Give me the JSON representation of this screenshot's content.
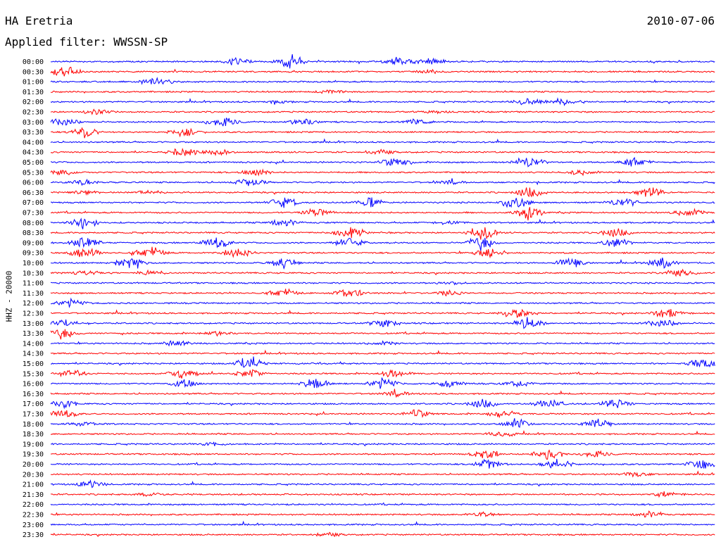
{
  "header": {
    "station": "HA Eretria",
    "date": "2010-07-06",
    "filter": "Applied filter: WWSSN-SP"
  },
  "chart_data": {
    "type": "line",
    "title": "HA Eretria",
    "subtitle": "Applied filter: WWSSN-SP",
    "date": "2010-07-06",
    "ylabel": "HHZ - 20000",
    "colors": {
      "even_hour": "#0000ff",
      "half_hour": "#ff0000"
    },
    "rows": [
      {
        "label": "00:00",
        "activity": [
          [
            0.28,
            0.5
          ],
          [
            0.36,
            0.9
          ],
          [
            0.52,
            0.5
          ],
          [
            0.57,
            0.45
          ]
        ]
      },
      {
        "label": "00:30",
        "activity": [
          [
            0.02,
            0.7
          ],
          [
            0.57,
            0.2
          ]
        ]
      },
      {
        "label": "01:00",
        "activity": [
          [
            0.16,
            0.6
          ]
        ]
      },
      {
        "label": "01:30",
        "activity": [
          [
            0.42,
            0.2
          ]
        ]
      },
      {
        "label": "02:00",
        "activity": [
          [
            0.34,
            0.15
          ],
          [
            0.72,
            0.4
          ],
          [
            0.77,
            0.4
          ]
        ]
      },
      {
        "label": "02:30",
        "activity": [
          [
            0.07,
            0.3
          ],
          [
            0.58,
            0.15
          ]
        ]
      },
      {
        "label": "03:00",
        "activity": [
          [
            0.02,
            0.5
          ],
          [
            0.26,
            0.6
          ],
          [
            0.38,
            0.5
          ],
          [
            0.55,
            0.35
          ]
        ]
      },
      {
        "label": "03:30",
        "activity": [
          [
            0.05,
            0.6
          ],
          [
            0.2,
            0.5
          ]
        ]
      },
      {
        "label": "04:00",
        "activity": []
      },
      {
        "label": "04:30",
        "activity": [
          [
            0.2,
            0.5
          ],
          [
            0.25,
            0.4
          ],
          [
            0.5,
            0.2
          ]
        ]
      },
      {
        "label": "05:00",
        "activity": [
          [
            0.52,
            0.6
          ],
          [
            0.72,
            0.8
          ],
          [
            0.88,
            0.5
          ]
        ]
      },
      {
        "label": "05:30",
        "activity": [
          [
            0.02,
            0.3
          ],
          [
            0.31,
            0.4
          ],
          [
            0.8,
            0.3
          ]
        ]
      },
      {
        "label": "06:00",
        "activity": [
          [
            0.05,
            0.3
          ],
          [
            0.3,
            0.5
          ],
          [
            0.6,
            0.2
          ]
        ]
      },
      {
        "label": "06:30",
        "activity": [
          [
            0.05,
            0.2
          ],
          [
            0.15,
            0.2
          ],
          [
            0.72,
            0.7
          ],
          [
            0.9,
            0.6
          ]
        ]
      },
      {
        "label": "07:00",
        "activity": [
          [
            0.35,
            0.7
          ],
          [
            0.48,
            0.5
          ],
          [
            0.7,
            0.8
          ],
          [
            0.86,
            0.6
          ]
        ]
      },
      {
        "label": "07:30",
        "activity": [
          [
            0.4,
            0.5
          ],
          [
            0.72,
            0.8
          ],
          [
            0.96,
            0.5
          ]
        ]
      },
      {
        "label": "08:00",
        "activity": [
          [
            0.05,
            0.7
          ],
          [
            0.35,
            0.5
          ],
          [
            0.6,
            0.2
          ]
        ]
      },
      {
        "label": "08:30",
        "activity": [
          [
            0.45,
            0.8
          ],
          [
            0.65,
            0.9
          ],
          [
            0.85,
            0.6
          ]
        ]
      },
      {
        "label": "09:00",
        "activity": [
          [
            0.05,
            0.8
          ],
          [
            0.25,
            0.7
          ],
          [
            0.45,
            0.6
          ],
          [
            0.65,
            0.9
          ],
          [
            0.85,
            0.6
          ]
        ]
      },
      {
        "label": "09:30",
        "activity": [
          [
            0.05,
            0.8
          ],
          [
            0.15,
            0.7
          ],
          [
            0.28,
            0.6
          ],
          [
            0.66,
            0.7
          ]
        ]
      },
      {
        "label": "10:00",
        "activity": [
          [
            0.12,
            0.8
          ],
          [
            0.35,
            0.6
          ],
          [
            0.78,
            0.7
          ],
          [
            0.92,
            0.6
          ]
        ]
      },
      {
        "label": "10:30",
        "activity": [
          [
            0.05,
            0.3
          ],
          [
            0.15,
            0.3
          ],
          [
            0.95,
            0.4
          ]
        ]
      },
      {
        "label": "11:00",
        "activity": [
          [
            0.6,
            0.15
          ]
        ]
      },
      {
        "label": "11:30",
        "activity": [
          [
            0.35,
            0.5
          ],
          [
            0.45,
            0.6
          ],
          [
            0.6,
            0.3
          ]
        ]
      },
      {
        "label": "12:00",
        "activity": [
          [
            0.03,
            0.4
          ]
        ]
      },
      {
        "label": "12:30",
        "activity": [
          [
            0.7,
            0.6
          ],
          [
            0.93,
            0.6
          ]
        ]
      },
      {
        "label": "13:00",
        "activity": [
          [
            0.02,
            0.4
          ],
          [
            0.5,
            0.5
          ],
          [
            0.72,
            0.7
          ],
          [
            0.92,
            0.5
          ]
        ]
      },
      {
        "label": "13:30",
        "activity": [
          [
            0.02,
            0.7
          ],
          [
            0.25,
            0.3
          ]
        ]
      },
      {
        "label": "14:00",
        "activity": [
          [
            0.19,
            0.4
          ],
          [
            0.5,
            0.2
          ]
        ]
      },
      {
        "label": "14:30",
        "activity": []
      },
      {
        "label": "15:00",
        "activity": [
          [
            0.3,
            0.9
          ],
          [
            0.98,
            0.6
          ]
        ]
      },
      {
        "label": "15:30",
        "activity": [
          [
            0.03,
            0.5
          ],
          [
            0.2,
            0.6
          ],
          [
            0.3,
            0.5
          ],
          [
            0.52,
            0.5
          ]
        ]
      },
      {
        "label": "16:00",
        "activity": [
          [
            0.2,
            0.5
          ],
          [
            0.4,
            0.6
          ],
          [
            0.5,
            0.6
          ],
          [
            0.6,
            0.5
          ],
          [
            0.7,
            0.4
          ]
        ]
      },
      {
        "label": "16:30",
        "activity": [
          [
            0.52,
            0.3
          ]
        ]
      },
      {
        "label": "17:00",
        "activity": [
          [
            0.02,
            0.4
          ],
          [
            0.65,
            0.6
          ],
          [
            0.75,
            0.6
          ],
          [
            0.85,
            0.5
          ]
        ]
      },
      {
        "label": "17:30",
        "activity": [
          [
            0.02,
            0.5
          ],
          [
            0.55,
            0.5
          ],
          [
            0.68,
            0.4
          ]
        ]
      },
      {
        "label": "18:00",
        "activity": [
          [
            0.05,
            0.2
          ],
          [
            0.7,
            0.6
          ],
          [
            0.82,
            0.6
          ]
        ]
      },
      {
        "label": "18:30",
        "activity": [
          [
            0.68,
            0.3
          ]
        ]
      },
      {
        "label": "19:00",
        "activity": [
          [
            0.25,
            0.2
          ]
        ]
      },
      {
        "label": "19:30",
        "activity": [
          [
            0.65,
            0.5
          ],
          [
            0.75,
            0.7
          ],
          [
            0.82,
            0.4
          ]
        ]
      },
      {
        "label": "20:00",
        "activity": [
          [
            0.66,
            0.6
          ],
          [
            0.76,
            0.7
          ],
          [
            0.98,
            0.6
          ]
        ]
      },
      {
        "label": "20:30",
        "activity": [
          [
            0.88,
            0.3
          ]
        ]
      },
      {
        "label": "21:00",
        "activity": [
          [
            0.06,
            0.5
          ]
        ]
      },
      {
        "label": "21:30",
        "activity": [
          [
            0.15,
            0.2
          ],
          [
            0.93,
            0.2
          ]
        ]
      },
      {
        "label": "22:00",
        "activity": []
      },
      {
        "label": "22:30",
        "activity": [
          [
            0.65,
            0.2
          ],
          [
            0.9,
            0.4
          ]
        ]
      },
      {
        "label": "23:00",
        "activity": []
      },
      {
        "label": "23:30",
        "activity": [
          [
            0.42,
            0.2
          ]
        ]
      }
    ]
  }
}
